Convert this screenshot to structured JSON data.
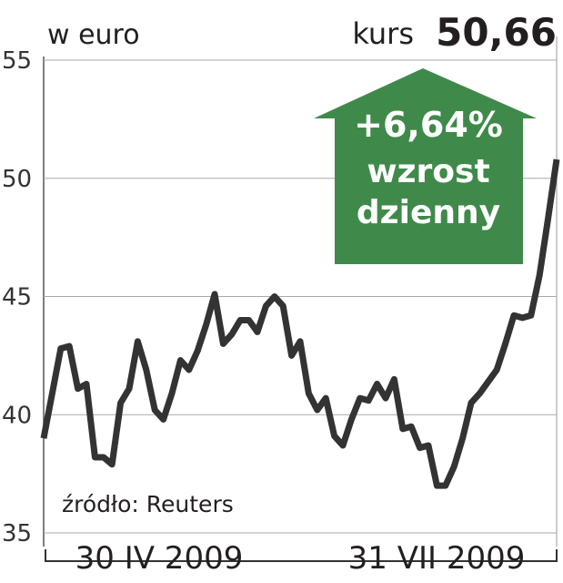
{
  "chart_data": {
    "type": "line",
    "title": "kurs",
    "title_value": "50,66",
    "y_axis_label": "w euro",
    "x_labels": [
      "30 IV 2009",
      "31 VII 2009"
    ],
    "source": "źródło: Reuters",
    "annotation": {
      "value": "+6,64%",
      "lines": [
        "wzrost",
        "dzienny"
      ],
      "color": "#3f8a4a"
    },
    "categories": [
      null,
      null,
      null,
      null,
      null,
      null,
      null,
      null,
      null,
      null,
      null,
      null,
      null,
      null,
      null,
      null,
      null,
      null,
      null,
      null,
      null,
      null,
      null,
      null,
      null,
      null,
      null,
      null,
      null,
      null,
      null,
      null,
      null,
      null,
      null,
      null,
      null,
      null,
      null,
      null,
      null,
      null,
      null,
      null,
      null,
      null,
      null,
      null,
      null,
      null,
      null,
      null,
      null,
      null,
      null,
      null,
      null,
      null,
      null,
      null,
      null
    ],
    "values": [
      39.0,
      40.9,
      42.8,
      42.9,
      41.1,
      41.3,
      38.2,
      38.2,
      37.9,
      40.5,
      41.1,
      43.1,
      41.9,
      40.2,
      39.8,
      40.9,
      42.3,
      41.9,
      42.7,
      43.8,
      45.1,
      43.0,
      43.4,
      44.0,
      44.0,
      43.5,
      44.6,
      45.0,
      44.6,
      42.5,
      43.1,
      40.9,
      40.2,
      40.7,
      39.1,
      38.7,
      39.8,
      40.7,
      40.6,
      41.3,
      40.7,
      41.5,
      39.4,
      39.5,
      38.6,
      38.7,
      37.0,
      37.0,
      37.8,
      39.0,
      40.5,
      40.9,
      41.4,
      41.9,
      43.0,
      44.2,
      44.1,
      44.2,
      45.9,
      48.3,
      50.8
    ],
    "color": "#333333",
    "ylim": [
      35,
      55
    ],
    "yticks": [
      35,
      40,
      45,
      50,
      55
    ],
    "grid": true
  }
}
